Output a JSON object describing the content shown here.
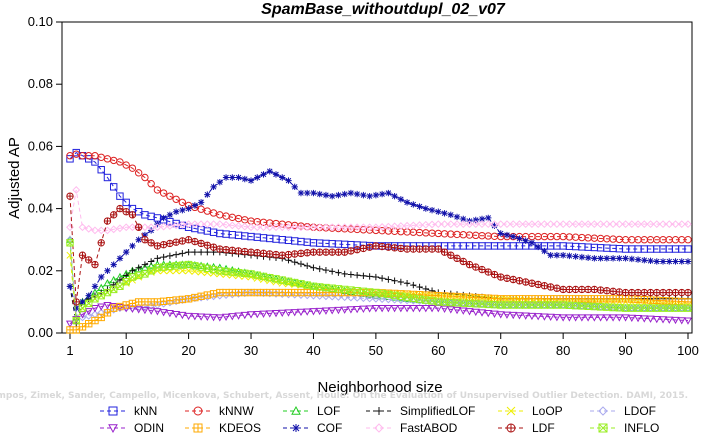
{
  "chart_data": {
    "type": "line",
    "title": "SpamBase_withoutdupl_02_v07",
    "xlabel": "Neighborhood size",
    "ylabel": "Adjusted AP",
    "xlim": [
      1,
      100
    ],
    "ylim": [
      0,
      0.1
    ],
    "xticks": [
      1,
      10,
      20,
      30,
      40,
      50,
      60,
      70,
      80,
      90,
      100
    ],
    "yticks": [
      "0.00",
      "0.02",
      "0.04",
      "0.06",
      "0.08",
      "0.10"
    ],
    "legend_position": "bottom",
    "credit": "Campos, Zimek, Sander, Campello, Micenkova, Schubert, Assent, Houle: On the Evaluation of Unsupervised Outlier Detection. DAMI, 2015.",
    "series": [
      {
        "name": "kNN",
        "color": "#2222dd",
        "marker": "square",
        "points": [
          [
            1,
            0.056
          ],
          [
            2,
            0.058
          ],
          [
            3,
            0.057
          ],
          [
            5,
            0.055
          ],
          [
            7,
            0.05
          ],
          [
            9,
            0.044
          ],
          [
            11,
            0.04
          ],
          [
            13,
            0.038
          ],
          [
            15,
            0.037
          ],
          [
            20,
            0.034
          ],
          [
            25,
            0.032
          ],
          [
            30,
            0.031
          ],
          [
            40,
            0.029
          ],
          [
            50,
            0.028
          ],
          [
            60,
            0.028
          ],
          [
            70,
            0.028
          ],
          [
            80,
            0.028
          ],
          [
            90,
            0.027
          ],
          [
            100,
            0.027
          ]
        ]
      },
      {
        "name": "kNNW",
        "color": "#dd2222",
        "marker": "circle",
        "points": [
          [
            1,
            0.057
          ],
          [
            2,
            0.0575
          ],
          [
            3,
            0.057
          ],
          [
            5,
            0.057
          ],
          [
            7,
            0.056
          ],
          [
            9,
            0.055
          ],
          [
            11,
            0.053
          ],
          [
            13,
            0.05
          ],
          [
            15,
            0.046
          ],
          [
            20,
            0.041
          ],
          [
            25,
            0.038
          ],
          [
            30,
            0.036
          ],
          [
            40,
            0.034
          ],
          [
            50,
            0.033
          ],
          [
            60,
            0.032
          ],
          [
            70,
            0.031
          ],
          [
            80,
            0.031
          ],
          [
            90,
            0.03
          ],
          [
            100,
            0.03
          ]
        ]
      },
      {
        "name": "LOF",
        "color": "#22cc22",
        "marker": "triangle-up",
        "points": [
          [
            1,
            0.03
          ],
          [
            2,
            0.005
          ],
          [
            3,
            0.01
          ],
          [
            5,
            0.013
          ],
          [
            7,
            0.016
          ],
          [
            9,
            0.018
          ],
          [
            11,
            0.02
          ],
          [
            13,
            0.021
          ],
          [
            15,
            0.022
          ],
          [
            20,
            0.022
          ],
          [
            25,
            0.021
          ],
          [
            30,
            0.019
          ],
          [
            35,
            0.017
          ],
          [
            40,
            0.015
          ],
          [
            50,
            0.012
          ],
          [
            60,
            0.01
          ],
          [
            70,
            0.009
          ],
          [
            80,
            0.009
          ],
          [
            90,
            0.008
          ],
          [
            100,
            0.008
          ]
        ]
      },
      {
        "name": "SimplifiedLOF",
        "color": "#111111",
        "marker": "plus",
        "points": [
          [
            1,
            0.015
          ],
          [
            2,
            0.003
          ],
          [
            3,
            0.01
          ],
          [
            5,
            0.012
          ],
          [
            7,
            0.014
          ],
          [
            9,
            0.017
          ],
          [
            11,
            0.02
          ],
          [
            13,
            0.022
          ],
          [
            15,
            0.024
          ],
          [
            20,
            0.026
          ],
          [
            25,
            0.026
          ],
          [
            30,
            0.025
          ],
          [
            35,
            0.024
          ],
          [
            40,
            0.021
          ],
          [
            45,
            0.019
          ],
          [
            50,
            0.018
          ],
          [
            55,
            0.016
          ],
          [
            60,
            0.013
          ],
          [
            70,
            0.011
          ],
          [
            80,
            0.011
          ],
          [
            90,
            0.011
          ],
          [
            100,
            0.011
          ]
        ]
      },
      {
        "name": "LoOP",
        "color": "#eeee00",
        "marker": "x",
        "points": [
          [
            1,
            0.025
          ],
          [
            2,
            0.004
          ],
          [
            3,
            0.008
          ],
          [
            5,
            0.011
          ],
          [
            7,
            0.013
          ],
          [
            9,
            0.015
          ],
          [
            11,
            0.017
          ],
          [
            13,
            0.019
          ],
          [
            15,
            0.02
          ],
          [
            20,
            0.02
          ],
          [
            25,
            0.019
          ],
          [
            30,
            0.018
          ],
          [
            35,
            0.016
          ],
          [
            40,
            0.015
          ],
          [
            50,
            0.013
          ],
          [
            60,
            0.012
          ],
          [
            70,
            0.011
          ],
          [
            80,
            0.01
          ],
          [
            90,
            0.01
          ],
          [
            100,
            0.009
          ]
        ]
      },
      {
        "name": "LDOF",
        "color": "#aaaaee",
        "marker": "diamond",
        "points": [
          [
            1,
            0.03
          ],
          [
            2,
            0.005
          ],
          [
            3,
            0.005
          ],
          [
            5,
            0.006
          ],
          [
            7,
            0.007
          ],
          [
            9,
            0.008
          ],
          [
            11,
            0.008
          ],
          [
            15,
            0.009
          ],
          [
            20,
            0.011
          ],
          [
            25,
            0.012
          ],
          [
            30,
            0.013
          ],
          [
            40,
            0.012
          ],
          [
            50,
            0.011
          ],
          [
            60,
            0.01
          ],
          [
            70,
            0.009
          ],
          [
            80,
            0.009
          ],
          [
            90,
            0.008
          ],
          [
            100,
            0.008
          ]
        ]
      },
      {
        "name": "ODIN",
        "color": "#9922cc",
        "marker": "triangle-down",
        "points": [
          [
            1,
            0.003
          ],
          [
            3,
            0.006
          ],
          [
            5,
            0.008
          ],
          [
            7,
            0.009
          ],
          [
            10,
            0.008
          ],
          [
            15,
            0.007
          ],
          [
            20,
            0.0055
          ],
          [
            25,
            0.005
          ],
          [
            30,
            0.006
          ],
          [
            40,
            0.007
          ],
          [
            50,
            0.008
          ],
          [
            60,
            0.008
          ],
          [
            70,
            0.006
          ],
          [
            80,
            0.005
          ],
          [
            90,
            0.005
          ],
          [
            100,
            0.004
          ]
        ]
      },
      {
        "name": "KDEOS",
        "color": "#ffaa00",
        "marker": "square-cross",
        "points": [
          [
            1,
            0.001
          ],
          [
            2,
            0.001
          ],
          [
            4,
            0.003
          ],
          [
            6,
            0.005
          ],
          [
            8,
            0.008
          ],
          [
            10,
            0.009
          ],
          [
            12,
            0.01
          ],
          [
            15,
            0.01
          ],
          [
            20,
            0.011
          ],
          [
            25,
            0.013
          ],
          [
            30,
            0.013
          ],
          [
            40,
            0.013
          ],
          [
            50,
            0.013
          ],
          [
            60,
            0.012
          ],
          [
            70,
            0.011
          ],
          [
            80,
            0.011
          ],
          [
            90,
            0.011
          ],
          [
            100,
            0.01
          ]
        ]
      },
      {
        "name": "COF",
        "color": "#1111aa",
        "marker": "asterisk",
        "points": [
          [
            1,
            0.015
          ],
          [
            2,
            0.008
          ],
          [
            4,
            0.012
          ],
          [
            6,
            0.018
          ],
          [
            8,
            0.022
          ],
          [
            10,
            0.026
          ],
          [
            12,
            0.03
          ],
          [
            14,
            0.033
          ],
          [
            16,
            0.037
          ],
          [
            18,
            0.039
          ],
          [
            20,
            0.04
          ],
          [
            22,
            0.042
          ],
          [
            24,
            0.047
          ],
          [
            26,
            0.05
          ],
          [
            28,
            0.05
          ],
          [
            30,
            0.049
          ],
          [
            33,
            0.052
          ],
          [
            36,
            0.049
          ],
          [
            38,
            0.045
          ],
          [
            40,
            0.045
          ],
          [
            43,
            0.044
          ],
          [
            46,
            0.045
          ],
          [
            49,
            0.044
          ],
          [
            52,
            0.045
          ],
          [
            55,
            0.042
          ],
          [
            58,
            0.04
          ],
          [
            62,
            0.038
          ],
          [
            65,
            0.036
          ],
          [
            68,
            0.037
          ],
          [
            70,
            0.032
          ],
          [
            72,
            0.031
          ],
          [
            75,
            0.029
          ],
          [
            78,
            0.025
          ],
          [
            80,
            0.025
          ],
          [
            85,
            0.024
          ],
          [
            90,
            0.024
          ],
          [
            95,
            0.023
          ],
          [
            100,
            0.023
          ]
        ]
      },
      {
        "name": "FastABOD",
        "color": "#ffbbee",
        "marker": "diamond",
        "points": [
          [
            1,
            0.034
          ],
          [
            2,
            0.046
          ],
          [
            3,
            0.034
          ],
          [
            5,
            0.033
          ],
          [
            7,
            0.033
          ],
          [
            10,
            0.034
          ],
          [
            15,
            0.034
          ],
          [
            20,
            0.035
          ],
          [
            25,
            0.035
          ],
          [
            30,
            0.034
          ],
          [
            40,
            0.034
          ],
          [
            50,
            0.034
          ],
          [
            60,
            0.035
          ],
          [
            70,
            0.035
          ],
          [
            80,
            0.035
          ],
          [
            90,
            0.035
          ],
          [
            100,
            0.035
          ]
        ]
      },
      {
        "name": "LDF",
        "color": "#aa1111",
        "marker": "circle-plus",
        "points": [
          [
            1,
            0.044
          ],
          [
            2,
            0.01
          ],
          [
            3,
            0.025
          ],
          [
            5,
            0.022
          ],
          [
            7,
            0.036
          ],
          [
            9,
            0.04
          ],
          [
            11,
            0.038
          ],
          [
            13,
            0.03
          ],
          [
            15,
            0.028
          ],
          [
            20,
            0.03
          ],
          [
            25,
            0.027
          ],
          [
            30,
            0.026
          ],
          [
            35,
            0.025
          ],
          [
            40,
            0.026
          ],
          [
            45,
            0.026
          ],
          [
            50,
            0.028
          ],
          [
            55,
            0.027
          ],
          [
            60,
            0.027
          ],
          [
            65,
            0.022
          ],
          [
            70,
            0.018
          ],
          [
            75,
            0.016
          ],
          [
            80,
            0.014
          ],
          [
            85,
            0.014
          ],
          [
            90,
            0.013
          ],
          [
            100,
            0.013
          ]
        ]
      },
      {
        "name": "INFLO",
        "color": "#99ee22",
        "marker": "square-x",
        "points": [
          [
            1,
            0.029
          ],
          [
            2,
            0.004
          ],
          [
            3,
            0.008
          ],
          [
            5,
            0.011
          ],
          [
            7,
            0.013
          ],
          [
            9,
            0.015
          ],
          [
            11,
            0.018
          ],
          [
            13,
            0.019
          ],
          [
            15,
            0.021
          ],
          [
            20,
            0.022
          ],
          [
            25,
            0.02
          ],
          [
            30,
            0.019
          ],
          [
            35,
            0.017
          ],
          [
            40,
            0.015
          ],
          [
            50,
            0.013
          ],
          [
            60,
            0.01
          ],
          [
            70,
            0.009
          ],
          [
            80,
            0.009
          ],
          [
            90,
            0.008
          ],
          [
            100,
            0.008
          ]
        ]
      }
    ]
  }
}
